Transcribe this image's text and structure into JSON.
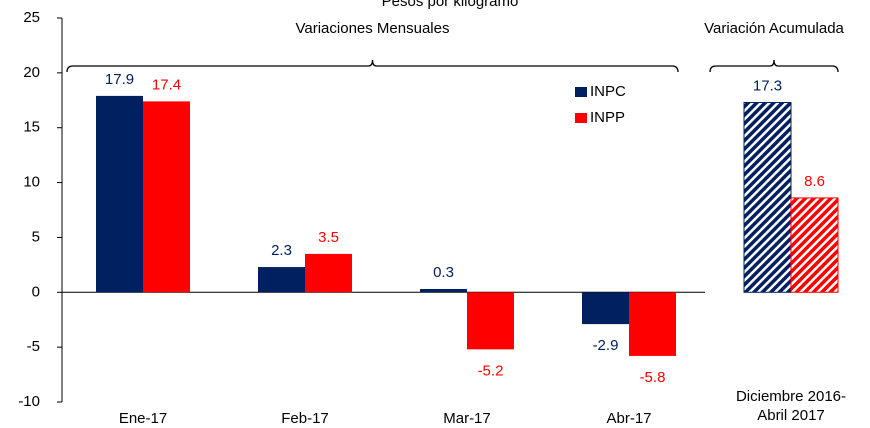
{
  "chart_data": {
    "type": "bar",
    "title": "Pesos por kilogramo",
    "categories": [
      "Ene-17",
      "Feb-17",
      "Mar-17",
      "Abr-17",
      "Diciembre  2016-\nAbril 2017"
    ],
    "series": [
      {
        "name": "INPC",
        "color": "#002060",
        "values": [
          17.9,
          2.3,
          0.3,
          -2.9,
          17.3
        ]
      },
      {
        "name": "INPP",
        "color": "#ff0000",
        "values": [
          17.4,
          3.5,
          -5.2,
          -5.8,
          8.6
        ]
      }
    ],
    "hatched_categories": [
      4
    ],
    "annotations": [
      "Variaciones Mensuales",
      "Variación Acumulada"
    ],
    "ylim": [
      -10,
      25
    ],
    "yticks": [
      -10,
      -5,
      0,
      5,
      10,
      15,
      20,
      25
    ],
    "grid": false,
    "legend": "upper right"
  }
}
